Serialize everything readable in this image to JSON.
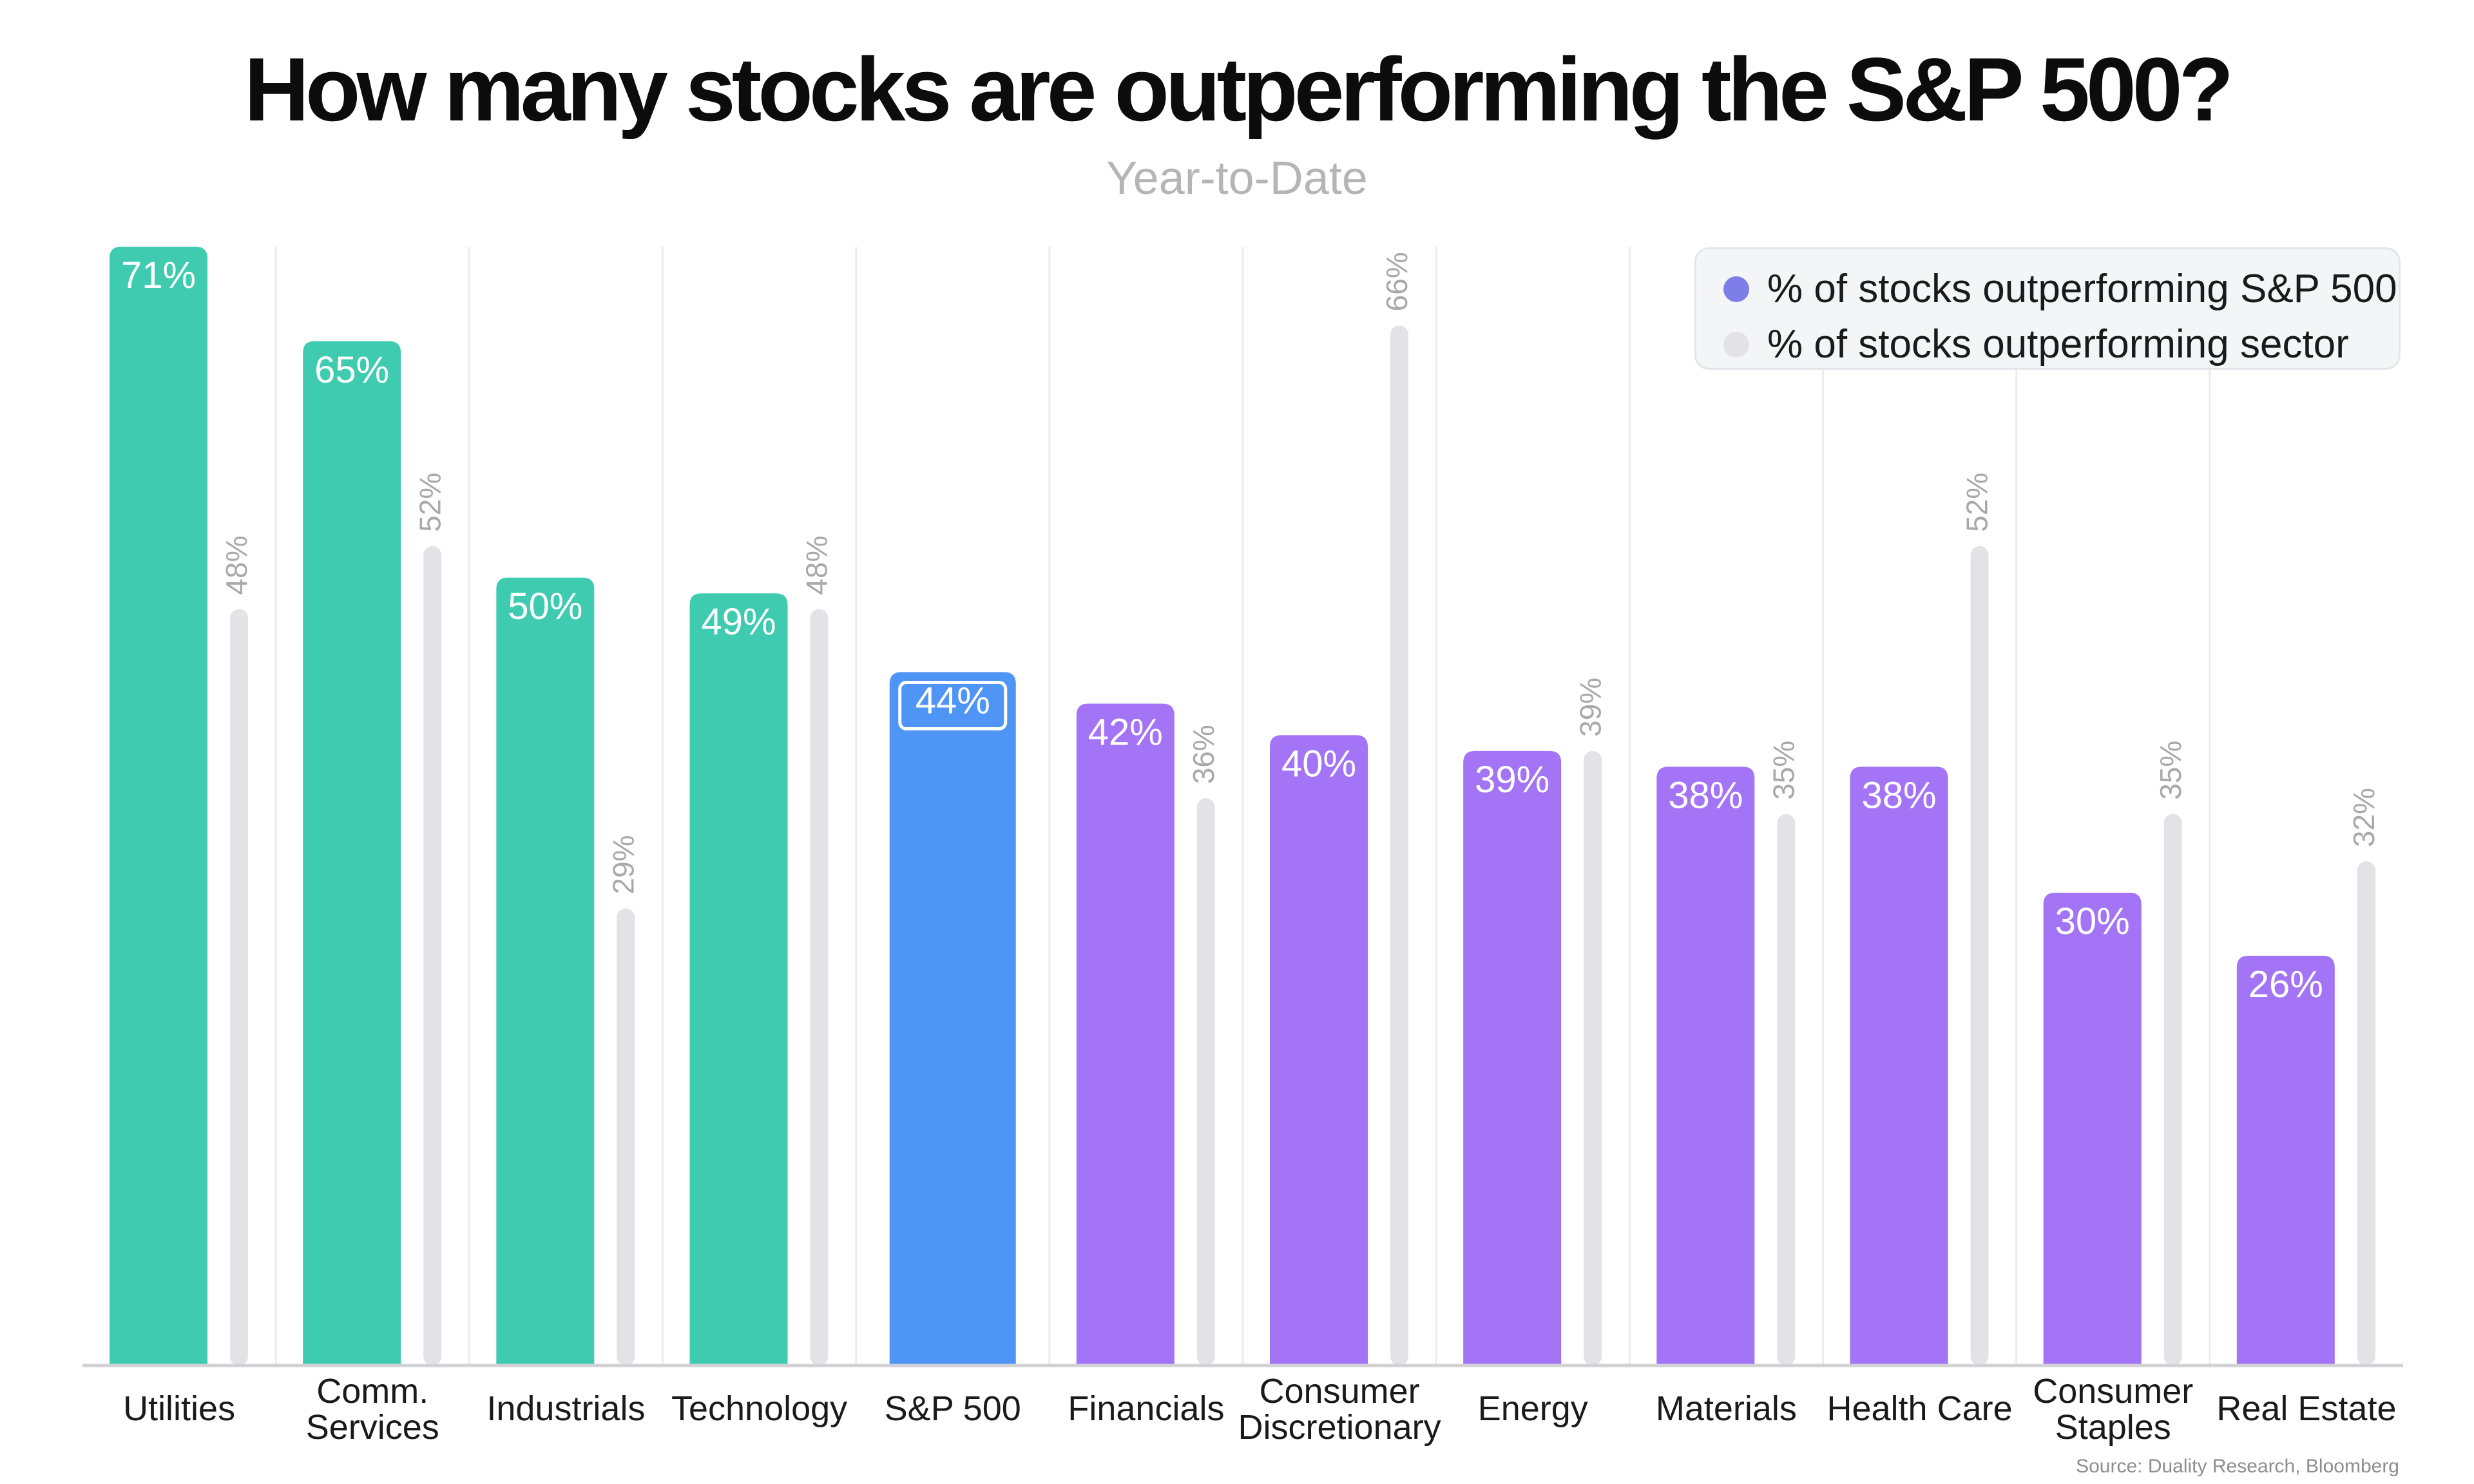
{
  "title": "How many stocks are outperforming the S&P 500?",
  "subtitle": "Year-to-Date",
  "source": "Source: Duality Research, Bloomberg",
  "colors": {
    "sector_highlight": "#3ecbb0",
    "benchmark": "#4e95f6",
    "sector_other": "#a374f5",
    "secondary": "#e3e3e7",
    "secondary_label": "#a9a9ad",
    "legend_primary_dot": "#7e7ee8"
  },
  "legend": [
    {
      "label": "% of stocks outperforming S&P 500",
      "color": "#7e7ee8"
    },
    {
      "label": "% of stocks outperforming sector",
      "color": "#e3e3e7"
    }
  ],
  "chart_data": {
    "type": "bar",
    "title": "How many stocks are outperforming the S&P 500?",
    "subtitle": "Year-to-Date",
    "ylim": [
      0,
      71
    ],
    "grid": "vertical category separators",
    "legend_position": "top-right",
    "categories": [
      [
        "Utilities"
      ],
      [
        "Comm.",
        "Services"
      ],
      [
        "Industrials"
      ],
      [
        "Technology"
      ],
      [
        "S&P 500"
      ],
      [
        "Financials"
      ],
      [
        "Consumer",
        "Discretionary"
      ],
      [
        "Energy"
      ],
      [
        "Materials"
      ],
      [
        "Health Care"
      ],
      [
        "Consumer",
        "Staples"
      ],
      [
        "Real Estate"
      ]
    ],
    "series": [
      {
        "name": "% of stocks outperforming S&P 500",
        "values": [
          71,
          65,
          50,
          49,
          44,
          42,
          40,
          39,
          38,
          38,
          30,
          26
        ],
        "labels": [
          "71%",
          "65%",
          "50%",
          "49%",
          "44%",
          "42%",
          "40%",
          "39%",
          "38%",
          "38%",
          "30%",
          "26%"
        ],
        "colors": [
          "#3ecbb0",
          "#3ecbb0",
          "#3ecbb0",
          "#3ecbb0",
          "#4e95f6",
          "#a374f5",
          "#a374f5",
          "#a374f5",
          "#a374f5",
          "#a374f5",
          "#a374f5",
          "#a374f5"
        ]
      },
      {
        "name": "% of stocks outperforming sector",
        "values": [
          48,
          52,
          29,
          48,
          null,
          36,
          66,
          39,
          35,
          52,
          35,
          32
        ],
        "labels": [
          "48%",
          "52%",
          "29%",
          "48%",
          null,
          "36%",
          "66%",
          "39%",
          "35%",
          "52%",
          "35%",
          "32%"
        ],
        "color": "#e3e3e7"
      }
    ]
  }
}
